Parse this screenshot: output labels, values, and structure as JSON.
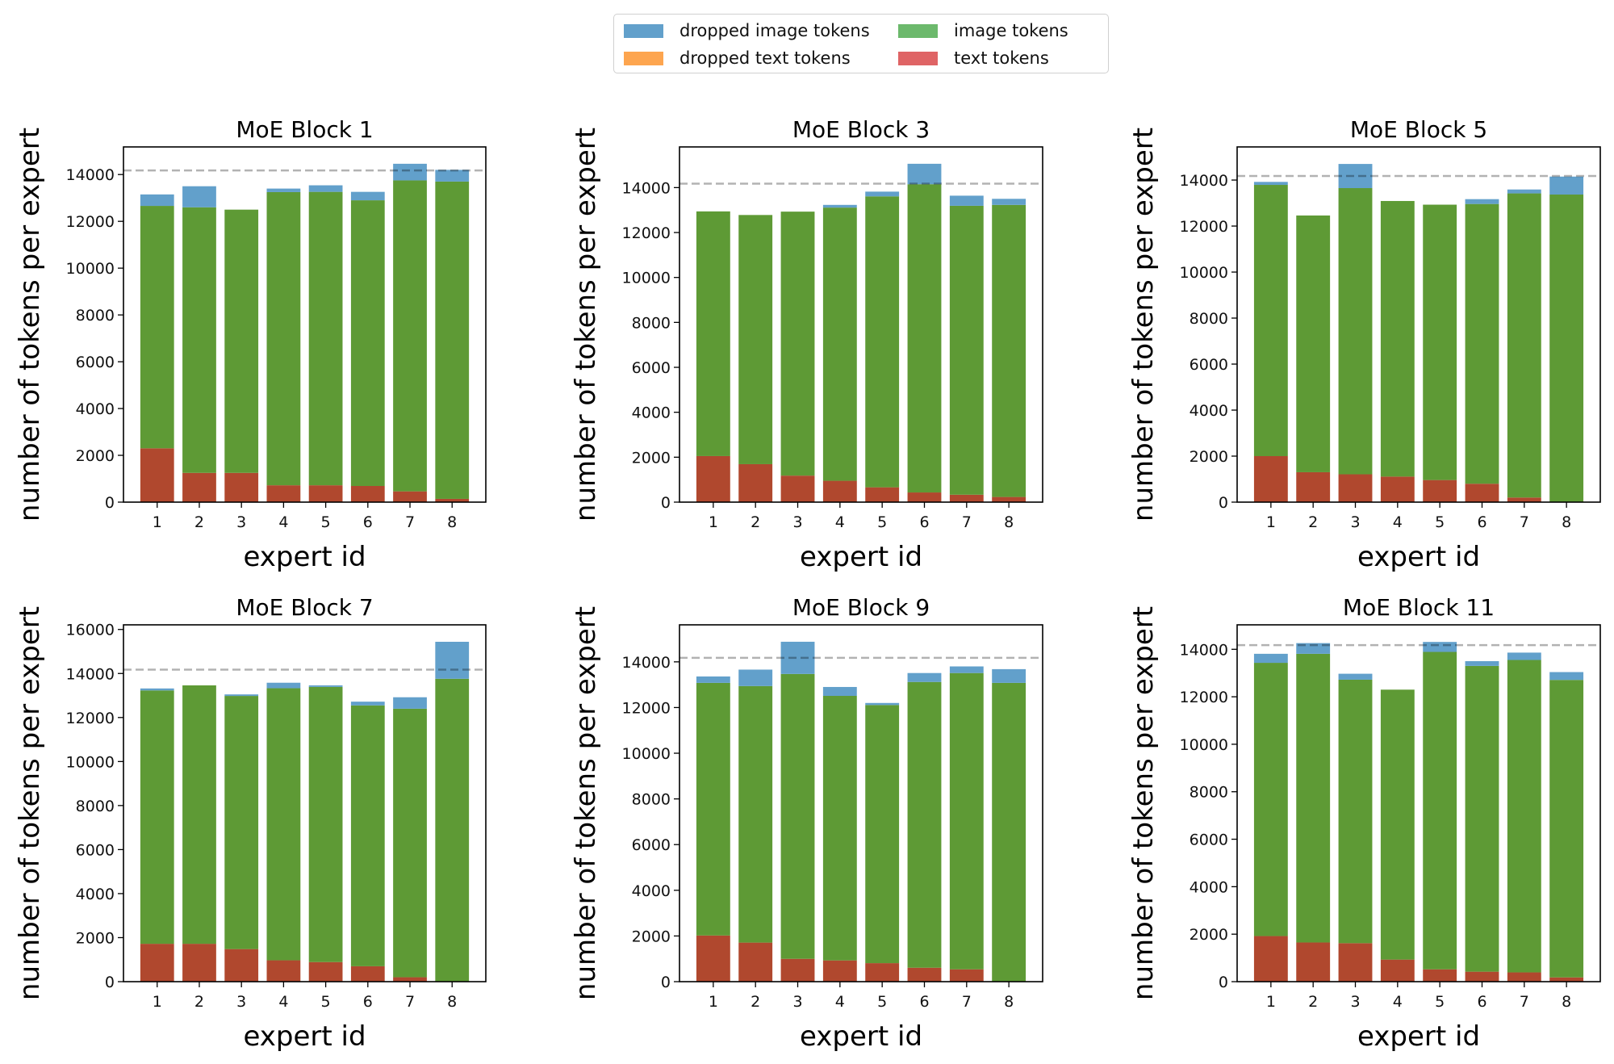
{
  "legend": {
    "placement": "top-center",
    "items": [
      {
        "label": "dropped image tokens",
        "color": "#62a0cb"
      },
      {
        "label": "image tokens",
        "color": "#6cb96c"
      },
      {
        "label": "dropped text tokens",
        "color": "#fda54f"
      },
      {
        "label": "text tokens",
        "color": "#df6465"
      }
    ]
  },
  "chart_data": [
    {
      "type": "bar",
      "stacked": true,
      "title": "MoE Block 1",
      "xlabel": "expert id",
      "ylabel": "number of tokens per expert",
      "categories": [
        "1",
        "2",
        "3",
        "4",
        "5",
        "6",
        "7",
        "8"
      ],
      "ylim": [
        0,
        15180
      ],
      "yticks": [
        0,
        2000,
        4000,
        6000,
        8000,
        10000,
        12000,
        14000
      ],
      "capacity_line": 14175,
      "series": [
        {
          "name": "text tokens",
          "values": [
            2300,
            1250,
            1250,
            720,
            720,
            690,
            460,
            140
          ]
        },
        {
          "name": "image tokens",
          "values": [
            10360,
            11350,
            11250,
            12530,
            12540,
            12210,
            13290,
            13560
          ]
        },
        {
          "name": "dropped text tokens",
          "values": [
            0,
            0,
            0,
            0,
            0,
            0,
            0,
            0
          ]
        },
        {
          "name": "dropped image tokens",
          "values": [
            490,
            900,
            0,
            150,
            280,
            360,
            710,
            500
          ]
        }
      ]
    },
    {
      "type": "bar",
      "stacked": true,
      "title": "MoE Block 3",
      "xlabel": "expert id",
      "ylabel": "number of tokens per expert",
      "categories": [
        "1",
        "2",
        "3",
        "4",
        "5",
        "6",
        "7",
        "8"
      ],
      "ylim": [
        0,
        15810
      ],
      "yticks": [
        0,
        2000,
        4000,
        6000,
        8000,
        10000,
        12000,
        14000
      ],
      "capacity_line": 14175,
      "series": [
        {
          "name": "text tokens",
          "values": [
            2050,
            1690,
            1180,
            950,
            660,
            430,
            330,
            230
          ]
        },
        {
          "name": "image tokens",
          "values": [
            10890,
            11090,
            11750,
            12160,
            12950,
            13720,
            12860,
            13000
          ]
        },
        {
          "name": "dropped text tokens",
          "values": [
            0,
            0,
            0,
            0,
            0,
            0,
            0,
            0
          ]
        },
        {
          "name": "dropped image tokens",
          "values": [
            0,
            0,
            0,
            120,
            210,
            910,
            450,
            270
          ]
        }
      ]
    },
    {
      "type": "bar",
      "stacked": true,
      "title": "MoE Block 5",
      "xlabel": "expert id",
      "ylabel": "number of tokens per expert",
      "categories": [
        "1",
        "2",
        "3",
        "4",
        "5",
        "6",
        "7",
        "8"
      ],
      "ylim": [
        0,
        15440
      ],
      "yticks": [
        0,
        2000,
        4000,
        6000,
        8000,
        10000,
        12000,
        14000
      ],
      "capacity_line": 14175,
      "series": [
        {
          "name": "text tokens",
          "values": [
            2000,
            1300,
            1210,
            1110,
            960,
            800,
            200,
            0
          ]
        },
        {
          "name": "image tokens",
          "values": [
            11790,
            11160,
            12440,
            11980,
            11970,
            12160,
            13220,
            13370
          ]
        },
        {
          "name": "dropped text tokens",
          "values": [
            0,
            0,
            0,
            0,
            0,
            0,
            0,
            0
          ]
        },
        {
          "name": "dropped image tokens",
          "values": [
            130,
            0,
            1050,
            0,
            0,
            210,
            170,
            780
          ]
        }
      ]
    },
    {
      "type": "bar",
      "stacked": true,
      "title": "MoE Block 7",
      "xlabel": "expert id",
      "ylabel": "number of tokens per expert",
      "categories": [
        "1",
        "2",
        "3",
        "4",
        "5",
        "6",
        "7",
        "8"
      ],
      "ylim": [
        0,
        16210
      ],
      "yticks": [
        0,
        2000,
        4000,
        6000,
        8000,
        10000,
        12000,
        14000,
        16000
      ],
      "capacity_line": 14175,
      "series": [
        {
          "name": "text tokens",
          "values": [
            1720,
            1720,
            1480,
            970,
            890,
            700,
            200,
            0
          ]
        },
        {
          "name": "image tokens",
          "values": [
            11510,
            11740,
            11500,
            12360,
            12500,
            11850,
            12200,
            13760
          ]
        },
        {
          "name": "dropped text tokens",
          "values": [
            0,
            0,
            0,
            0,
            0,
            0,
            0,
            0
          ]
        },
        {
          "name": "dropped image tokens",
          "values": [
            90,
            0,
            70,
            250,
            70,
            170,
            520,
            1680
          ]
        }
      ]
    },
    {
      "type": "bar",
      "stacked": true,
      "title": "MoE Block 9",
      "xlabel": "expert id",
      "ylabel": "number of tokens per expert",
      "categories": [
        "1",
        "2",
        "3",
        "4",
        "5",
        "6",
        "7",
        "8"
      ],
      "ylim": [
        0,
        15620
      ],
      "yticks": [
        0,
        2000,
        4000,
        6000,
        8000,
        10000,
        12000,
        14000
      ],
      "capacity_line": 14175,
      "series": [
        {
          "name": "text tokens",
          "values": [
            2020,
            1710,
            1000,
            930,
            810,
            610,
            540,
            0
          ]
        },
        {
          "name": "image tokens",
          "values": [
            11060,
            11230,
            12470,
            11580,
            11300,
            12510,
            12970,
            13080
          ]
        },
        {
          "name": "dropped text tokens",
          "values": [
            0,
            0,
            0,
            0,
            0,
            0,
            0,
            0
          ]
        },
        {
          "name": "dropped image tokens",
          "values": [
            280,
            720,
            1410,
            390,
            90,
            390,
            290,
            600
          ]
        }
      ]
    },
    {
      "type": "bar",
      "stacked": true,
      "title": "MoE Block 11",
      "xlabel": "expert id",
      "ylabel": "number of tokens per expert",
      "categories": [
        "1",
        "2",
        "3",
        "4",
        "5",
        "6",
        "7",
        "8"
      ],
      "ylim": [
        0,
        15030
      ],
      "yticks": [
        0,
        2000,
        4000,
        6000,
        8000,
        10000,
        12000,
        14000
      ],
      "capacity_line": 14175,
      "series": [
        {
          "name": "text tokens",
          "values": [
            1920,
            1650,
            1620,
            930,
            520,
            420,
            390,
            180
          ]
        },
        {
          "name": "image tokens",
          "values": [
            11510,
            12160,
            11100,
            11370,
            13370,
            12880,
            13160,
            12530
          ]
        },
        {
          "name": "dropped text tokens",
          "values": [
            0,
            0,
            0,
            0,
            0,
            0,
            0,
            0
          ]
        },
        {
          "name": "dropped image tokens",
          "values": [
            380,
            450,
            250,
            0,
            420,
            200,
            310,
            330
          ]
        }
      ]
    }
  ],
  "render_colors": {
    "text": "#b0482e",
    "image": "#5e9a35",
    "dropped_text": "#fda54f",
    "dropped_image": "#62a0cb",
    "capacity": "#b3b3b3"
  }
}
